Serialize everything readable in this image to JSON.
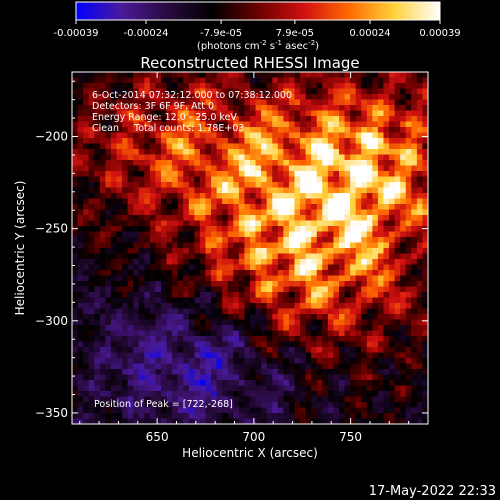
{
  "chart_data": {
    "type": "heatmap",
    "title": "Reconstructed RHESSI Image",
    "xlabel": "Heliocentric X (arcsec)",
    "ylabel": "Heliocentric Y (arcsec)",
    "xlim": [
      606,
      790
    ],
    "ylim": [
      -356,
      -165
    ],
    "x_ticks": [
      650,
      700,
      750
    ],
    "y_ticks": [
      -200,
      -250,
      -300,
      -350
    ],
    "colorbar": {
      "range": [
        -0.00039,
        0.00039
      ],
      "tick_values": [
        -0.00039,
        -0.00024,
        -7.9e-05,
        7.9e-05,
        0.00024,
        0.00039
      ],
      "tick_labels": [
        "-0.00039",
        "-0.00024",
        "-7.9e-05",
        "7.9e-05",
        "0.00024",
        "0.00039"
      ],
      "unit_parts": [
        "(photons cm",
        "-2",
        " s",
        "-1",
        " asec",
        "-2",
        ")"
      ],
      "colormap": [
        "#0000ff",
        "#4a1a9a",
        "#2a0a40",
        "#000000",
        "#6a0000",
        "#d01010",
        "#ff6a00",
        "#ffd23c",
        "#ffffff"
      ]
    },
    "info_lines": [
      "6-Oct-2014 07:32:12.000 to 07:38:12.000",
      "Detectors: 3F 6F 9F, Att 0",
      "Energy Range: 12.0 - 25.0 keV",
      "Clean     Total counts: 1.78E+03"
    ],
    "peak_label": "Position of Peak = [722,-268]",
    "peak": [
      722,
      -268
    ]
  },
  "footer": {
    "timestamp": "17-May-2022 22:33"
  }
}
